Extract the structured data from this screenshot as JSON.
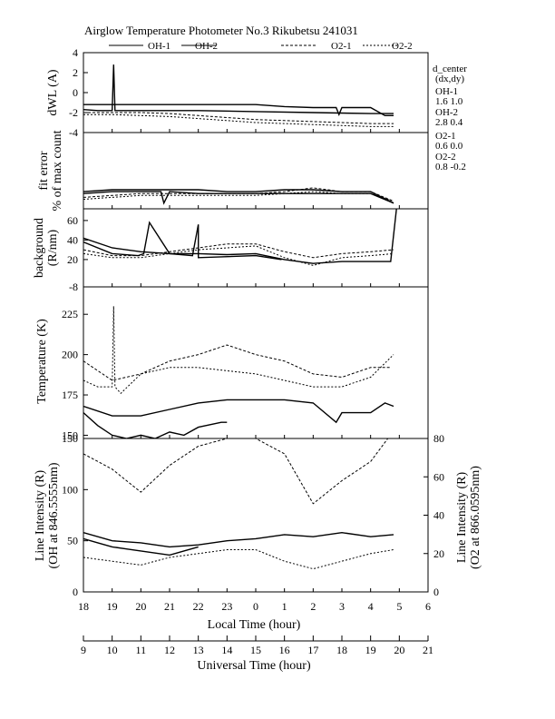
{
  "title": "Airglow Temperature Photometer No.3  Rikubetsu    241031",
  "legend": [
    {
      "name": "OH-1",
      "dash": ""
    },
    {
      "name": "OH-2",
      "dash": ""
    },
    {
      "name": "O2-1",
      "dash": "3,2"
    },
    {
      "name": "O2-2",
      "dash": "2,2"
    }
  ],
  "colors": {
    "line": "#000000"
  },
  "d_center": {
    "header": "d_center",
    "sub": "(dx,dy)",
    "items": [
      {
        "name": "OH-1",
        "values": "1.6  1.0"
      },
      {
        "name": "OH-2",
        "values": "2.8  0.4"
      },
      {
        "name": "O2-1",
        "values": "0.6  0.0"
      },
      {
        "name": "O2-2",
        "values": "0.8  -0.2"
      }
    ]
  },
  "axes": {
    "local_time_label": "Local Time (hour)",
    "universal_time_label": "Universal Time (hour)",
    "local_ticks": [
      "18",
      "19",
      "20",
      "21",
      "22",
      "23",
      "0",
      "1",
      "2",
      "3",
      "4",
      "5",
      "6"
    ],
    "ut_ticks": [
      "9",
      "10",
      "11",
      "12",
      "13",
      "14",
      "15",
      "16",
      "17",
      "18",
      "19",
      "20",
      "21"
    ]
  },
  "chart_data": [
    {
      "type": "line",
      "panel": "dwl",
      "ylabel": "dWL (A)",
      "ylim": [
        -4,
        4
      ],
      "yticks": [
        "4",
        "2",
        "0",
        "-2",
        "-4"
      ],
      "series": [
        {
          "name": "OH-1",
          "x": [
            18,
            19,
            20,
            21,
            22,
            23,
            24,
            25,
            26,
            26.8,
            26.9,
            27,
            28,
            28.5,
            28.8
          ],
          "y": [
            -1.2,
            -1.2,
            -1.2,
            -1.2,
            -1.2,
            -1.2,
            -1.2,
            -1.4,
            -1.5,
            -1.5,
            -2.2,
            -1.5,
            -1.5,
            -2.3,
            -2.3
          ]
        },
        {
          "name": "OH-2",
          "x": [
            18,
            18.5,
            19,
            19.05,
            19.1,
            19.2,
            20,
            22,
            24,
            26,
            28,
            28.8
          ],
          "y": [
            -1.7,
            -1.8,
            -1.8,
            2.8,
            -1.8,
            -1.8,
            -1.8,
            -1.8,
            -1.9,
            -2.0,
            -2.1,
            -2.1
          ]
        },
        {
          "name": "O2-1",
          "x": [
            18,
            19,
            20,
            21,
            22,
            23,
            24,
            25,
            26,
            27,
            28,
            28.8
          ],
          "y": [
            -2.0,
            -2.0,
            -2.0,
            -2.1,
            -2.3,
            -2.5,
            -2.7,
            -2.8,
            -2.9,
            -3.0,
            -3.1,
            -3.1
          ]
        },
        {
          "name": "O2-2",
          "x": [
            18,
            19,
            20,
            21,
            22,
            23,
            24,
            25,
            26,
            27,
            28,
            28.8
          ],
          "y": [
            -2.2,
            -2.2,
            -2.3,
            -2.4,
            -2.6,
            -2.8,
            -3.0,
            -3.1,
            -3.2,
            -3.3,
            -3.4,
            -3.4
          ]
        }
      ]
    },
    {
      "type": "line",
      "panel": "fit",
      "ylabel": "fit error\n% of max count",
      "ylim": [
        0,
        4
      ],
      "series": [
        {
          "name": "OH-1",
          "x": [
            18,
            19,
            20,
            21,
            22,
            23,
            24,
            25,
            26,
            27,
            28,
            28.8
          ],
          "y": [
            0.9,
            1.0,
            1.0,
            1.0,
            1.0,
            0.9,
            0.9,
            1.0,
            1.0,
            0.9,
            0.9,
            0.3
          ]
        },
        {
          "name": "OH-2",
          "x": [
            18,
            19,
            20,
            20.7,
            20.8,
            21,
            22,
            23,
            24,
            25,
            26,
            27,
            28,
            28.8
          ],
          "y": [
            0.8,
            0.9,
            0.9,
            0.9,
            0.3,
            0.9,
            0.8,
            0.8,
            0.8,
            0.8,
            0.8,
            0.8,
            0.8,
            0.3
          ]
        },
        {
          "name": "O2-1",
          "x": [
            18,
            19,
            20,
            21,
            22,
            23,
            24,
            25,
            26,
            27,
            28,
            28.8
          ],
          "y": [
            0.6,
            0.7,
            0.8,
            0.8,
            0.8,
            0.8,
            0.8,
            0.9,
            1.1,
            0.9,
            0.9,
            0.4
          ]
        },
        {
          "name": "O2-2",
          "x": [
            18,
            19,
            20,
            21,
            22,
            23,
            24,
            25,
            26,
            27,
            28,
            28.8
          ],
          "y": [
            0.5,
            0.6,
            0.7,
            0.7,
            0.7,
            0.7,
            0.7,
            0.8,
            0.9,
            0.8,
            0.8,
            0.4
          ]
        }
      ]
    },
    {
      "type": "line",
      "panel": "background",
      "ylabel": "background\n(R/nm)",
      "ylim": [
        -8,
        72
      ],
      "yticks": [
        "60",
        "40",
        "20",
        "-8"
      ],
      "series": [
        {
          "name": "OH-1",
          "x": [
            18,
            19,
            20,
            21,
            22,
            23,
            24,
            25,
            26,
            27,
            28,
            28.7,
            28.9
          ],
          "y": [
            42,
            32,
            28,
            26,
            26,
            25,
            26,
            20,
            16,
            18,
            18,
            18,
            72
          ]
        },
        {
          "name": "OH-2",
          "x": [
            18,
            19,
            19.9,
            20.1,
            20.3,
            21,
            21.8,
            22,
            22,
            24,
            24.9
          ],
          "y": [
            38,
            26,
            24,
            26,
            58,
            26,
            24,
            56,
            22,
            24,
            20
          ]
        },
        {
          "name": "O2-1",
          "x": [
            18,
            19,
            20,
            21,
            22,
            23,
            24,
            25,
            26,
            27,
            28,
            28.8
          ],
          "y": [
            30,
            24,
            24,
            28,
            32,
            36,
            36,
            28,
            22,
            26,
            28,
            30
          ]
        },
        {
          "name": "O2-2",
          "x": [
            18,
            19,
            20,
            21,
            22,
            23,
            24,
            25,
            26,
            27,
            28,
            28.8
          ],
          "y": [
            26,
            22,
            22,
            26,
            30,
            32,
            34,
            22,
            14,
            22,
            24,
            26
          ]
        }
      ]
    },
    {
      "type": "line",
      "panel": "temperature",
      "ylabel": "Temperature (K)",
      "ylim": [
        148,
        242
      ],
      "yticks": [
        "225",
        "200",
        "175",
        "150"
      ],
      "series": [
        {
          "name": "OH-1",
          "x": [
            18,
            19,
            20,
            21,
            22,
            23,
            24,
            25,
            26,
            26.8,
            27,
            28,
            28.5,
            28.8
          ],
          "y": [
            168,
            162,
            162,
            166,
            170,
            172,
            172,
            172,
            170,
            158,
            164,
            164,
            170,
            168
          ]
        },
        {
          "name": "OH-2",
          "x": [
            18,
            18.5,
            19,
            19.5,
            20,
            20.5,
            21,
            21.5,
            22,
            22.8,
            23
          ],
          "y": [
            164,
            156,
            150,
            148,
            150,
            148,
            152,
            150,
            155,
            158,
            158
          ]
        },
        {
          "name": "O2-1",
          "x": [
            18,
            19,
            20,
            21,
            22,
            23,
            24,
            25,
            26,
            27,
            28,
            28.7
          ],
          "y": [
            196,
            184,
            188,
            196,
            200,
            206,
            200,
            196,
            188,
            186,
            192,
            192
          ]
        },
        {
          "name": "O2-2",
          "x": [
            18,
            18.5,
            19,
            19.05,
            19.1,
            19.3,
            20,
            21,
            22,
            23,
            24,
            25,
            26,
            27,
            28,
            28.8
          ],
          "y": [
            184,
            180,
            180,
            230,
            180,
            176,
            188,
            192,
            192,
            190,
            188,
            184,
            180,
            180,
            186,
            200
          ]
        }
      ]
    },
    {
      "type": "line",
      "panel": "intensity",
      "ylabel": "Line Intensity (R)\n(OH at 846.5555nm)",
      "y2label": "Line Intensity (R)\n(O2 at 866.0595nm)",
      "ylim": [
        0,
        150
      ],
      "yticks": [
        "150",
        "100",
        "50",
        "0"
      ],
      "y2lim": [
        0,
        80
      ],
      "y2ticks": [
        "80",
        "60",
        "40",
        "20",
        "0"
      ],
      "series": [
        {
          "name": "OH-1",
          "axis": "left",
          "x": [
            18,
            19,
            20,
            21,
            22,
            23,
            24,
            25,
            26,
            27,
            28,
            28.8
          ],
          "y": [
            58,
            50,
            48,
            44,
            46,
            50,
            52,
            56,
            54,
            58,
            54,
            56
          ]
        },
        {
          "name": "OH-2",
          "axis": "left",
          "x": [
            18,
            18.5,
            19,
            19.5,
            20,
            20.5,
            21,
            21.5,
            22
          ],
          "y": [
            52,
            48,
            44,
            42,
            40,
            38,
            36,
            40,
            44
          ]
        },
        {
          "name": "O2-1",
          "axis": "right",
          "x": [
            18,
            19,
            20,
            21,
            22,
            23,
            24,
            25,
            26,
            27,
            28,
            28.6
          ],
          "y": [
            72,
            64,
            52,
            66,
            76,
            80,
            80,
            72,
            46,
            58,
            68,
            80
          ]
        },
        {
          "name": "O2-2",
          "axis": "right",
          "x": [
            18,
            19,
            20,
            21,
            22,
            23,
            24,
            25,
            26,
            27,
            28,
            28.8
          ],
          "y": [
            18,
            16,
            14,
            18,
            20,
            22,
            22,
            16,
            12,
            16,
            20,
            22
          ]
        }
      ]
    }
  ]
}
